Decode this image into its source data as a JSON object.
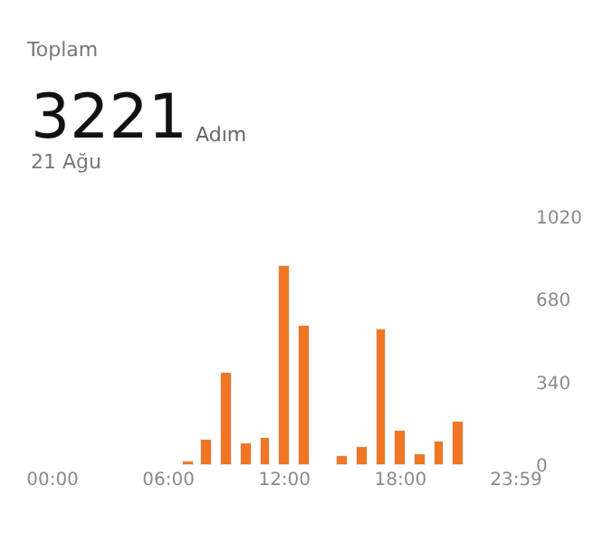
{
  "chart_data": {
    "type": "bar",
    "title": "Toplam",
    "annotations": [
      "3221",
      "Adım",
      "21 Ağu"
    ],
    "x": [
      7,
      8,
      9,
      10,
      11,
      12,
      13,
      15,
      16,
      17,
      18,
      19,
      20,
      21
    ],
    "values": [
      13,
      107,
      380,
      89,
      112,
      816,
      576,
      36,
      74,
      561,
      138,
      43,
      99,
      177
    ],
    "color": "#f07623",
    "xlim": [
      0,
      23.98
    ],
    "xticks": [
      {
        "value": 0,
        "label": "00:00"
      },
      {
        "value": 6,
        "label": "06:00"
      },
      {
        "value": 12,
        "label": "12:00"
      },
      {
        "value": 18,
        "label": "18:00"
      },
      {
        "value": 23.98,
        "label": "23:59"
      }
    ],
    "ylim": [
      0,
      1020
    ],
    "yticks": [
      0,
      340,
      680,
      1020
    ],
    "legend": false
  }
}
